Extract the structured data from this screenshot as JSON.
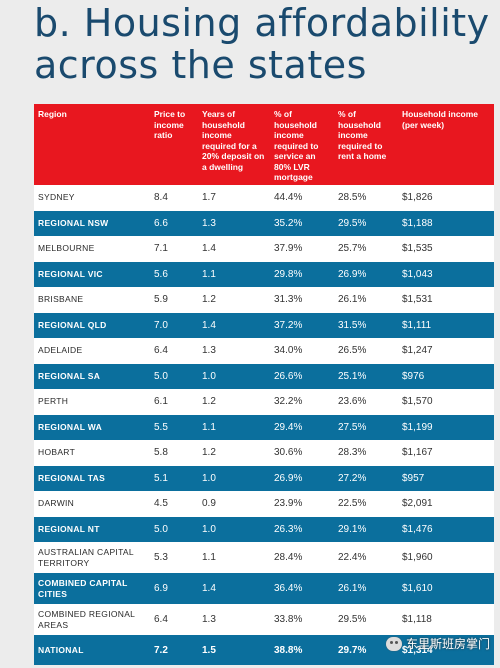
{
  "title": {
    "line1": "b. Housing affordability",
    "line2": "across the states"
  },
  "table": {
    "headers": [
      "Region",
      "Price to income ratio",
      "Years of household income required for a 20% deposit on a dwelling",
      "% of household income required to service an 80% LVR mortgage",
      "% of household income required to rent a home",
      "Household income (per week)"
    ],
    "rows": [
      {
        "region": "SYDNEY",
        "ratio": "8.4",
        "years": "1.7",
        "mortgage": "44.4%",
        "rent": "28.5%",
        "income": "$1,826",
        "style": "white"
      },
      {
        "region": "REGIONAL NSW",
        "ratio": "6.6",
        "years": "1.3",
        "mortgage": "35.2%",
        "rent": "29.5%",
        "income": "$1,188",
        "style": "blue"
      },
      {
        "region": "MELBOURNE",
        "ratio": "7.1",
        "years": "1.4",
        "mortgage": "37.9%",
        "rent": "25.7%",
        "income": "$1,535",
        "style": "white"
      },
      {
        "region": "REGIONAL VIC",
        "ratio": "5.6",
        "years": "1.1",
        "mortgage": "29.8%",
        "rent": "26.9%",
        "income": "$1,043",
        "style": "blue"
      },
      {
        "region": "BRISBANE",
        "ratio": "5.9",
        "years": "1.2",
        "mortgage": "31.3%",
        "rent": "26.1%",
        "income": "$1,531",
        "style": "white"
      },
      {
        "region": "REGIONAL QLD",
        "ratio": "7.0",
        "years": "1.4",
        "mortgage": "37.2%",
        "rent": "31.5%",
        "income": "$1,111",
        "style": "blue"
      },
      {
        "region": "ADELAIDE",
        "ratio": "6.4",
        "years": "1.3",
        "mortgage": "34.0%",
        "rent": "26.5%",
        "income": "$1,247",
        "style": "white"
      },
      {
        "region": "REGIONAL SA",
        "ratio": "5.0",
        "years": "1.0",
        "mortgage": "26.6%",
        "rent": "25.1%",
        "income": "$976",
        "style": "blue"
      },
      {
        "region": "PERTH",
        "ratio": "6.1",
        "years": "1.2",
        "mortgage": "32.2%",
        "rent": "23.6%",
        "income": "$1,570",
        "style": "white"
      },
      {
        "region": "REGIONAL WA",
        "ratio": "5.5",
        "years": "1.1",
        "mortgage": "29.4%",
        "rent": "27.5%",
        "income": "$1,199",
        "style": "blue"
      },
      {
        "region": "HOBART",
        "ratio": "5.8",
        "years": "1.2",
        "mortgage": "30.6%",
        "rent": "28.3%",
        "income": "$1,167",
        "style": "white"
      },
      {
        "region": "REGIONAL TAS",
        "ratio": "5.1",
        "years": "1.0",
        "mortgage": "26.9%",
        "rent": "27.2%",
        "income": "$957",
        "style": "blue"
      },
      {
        "region": "DARWIN",
        "ratio": "4.5",
        "years": "0.9",
        "mortgage": "23.9%",
        "rent": "22.5%",
        "income": "$2,091",
        "style": "white"
      },
      {
        "region": "REGIONAL NT",
        "ratio": "5.0",
        "years": "1.0",
        "mortgage": "26.3%",
        "rent": "29.1%",
        "income": "$1,476",
        "style": "blue"
      },
      {
        "region": "AUSTRALIAN CAPITAL TERRITORY",
        "ratio": "5.3",
        "years": "1.1",
        "mortgage": "28.4%",
        "rent": "22.4%",
        "income": "$1,960",
        "style": "white tall"
      },
      {
        "region": "COMBINED CAPITAL CITIES",
        "ratio": "6.9",
        "years": "1.4",
        "mortgage": "36.4%",
        "rent": "26.1%",
        "income": "$1,610",
        "style": "blue tall"
      },
      {
        "region": "COMBINED REGIONAL AREAS",
        "ratio": "6.4",
        "years": "1.3",
        "mortgage": "33.8%",
        "rent": "29.5%",
        "income": "$1,118",
        "style": "white tall"
      },
      {
        "region": "NATIONAL",
        "ratio": "7.2",
        "years": "1.5",
        "mortgage": "38.8%",
        "rent": "29.7%",
        "income": "$1,314",
        "style": "blue total"
      }
    ]
  },
  "watermark": {
    "text": "东里斯班房掌门",
    "icon": "wechat-icon"
  },
  "colors": {
    "header_red": "#e8171f",
    "row_blue": "#0b6f9d",
    "title_navy": "#1a4a6e"
  }
}
